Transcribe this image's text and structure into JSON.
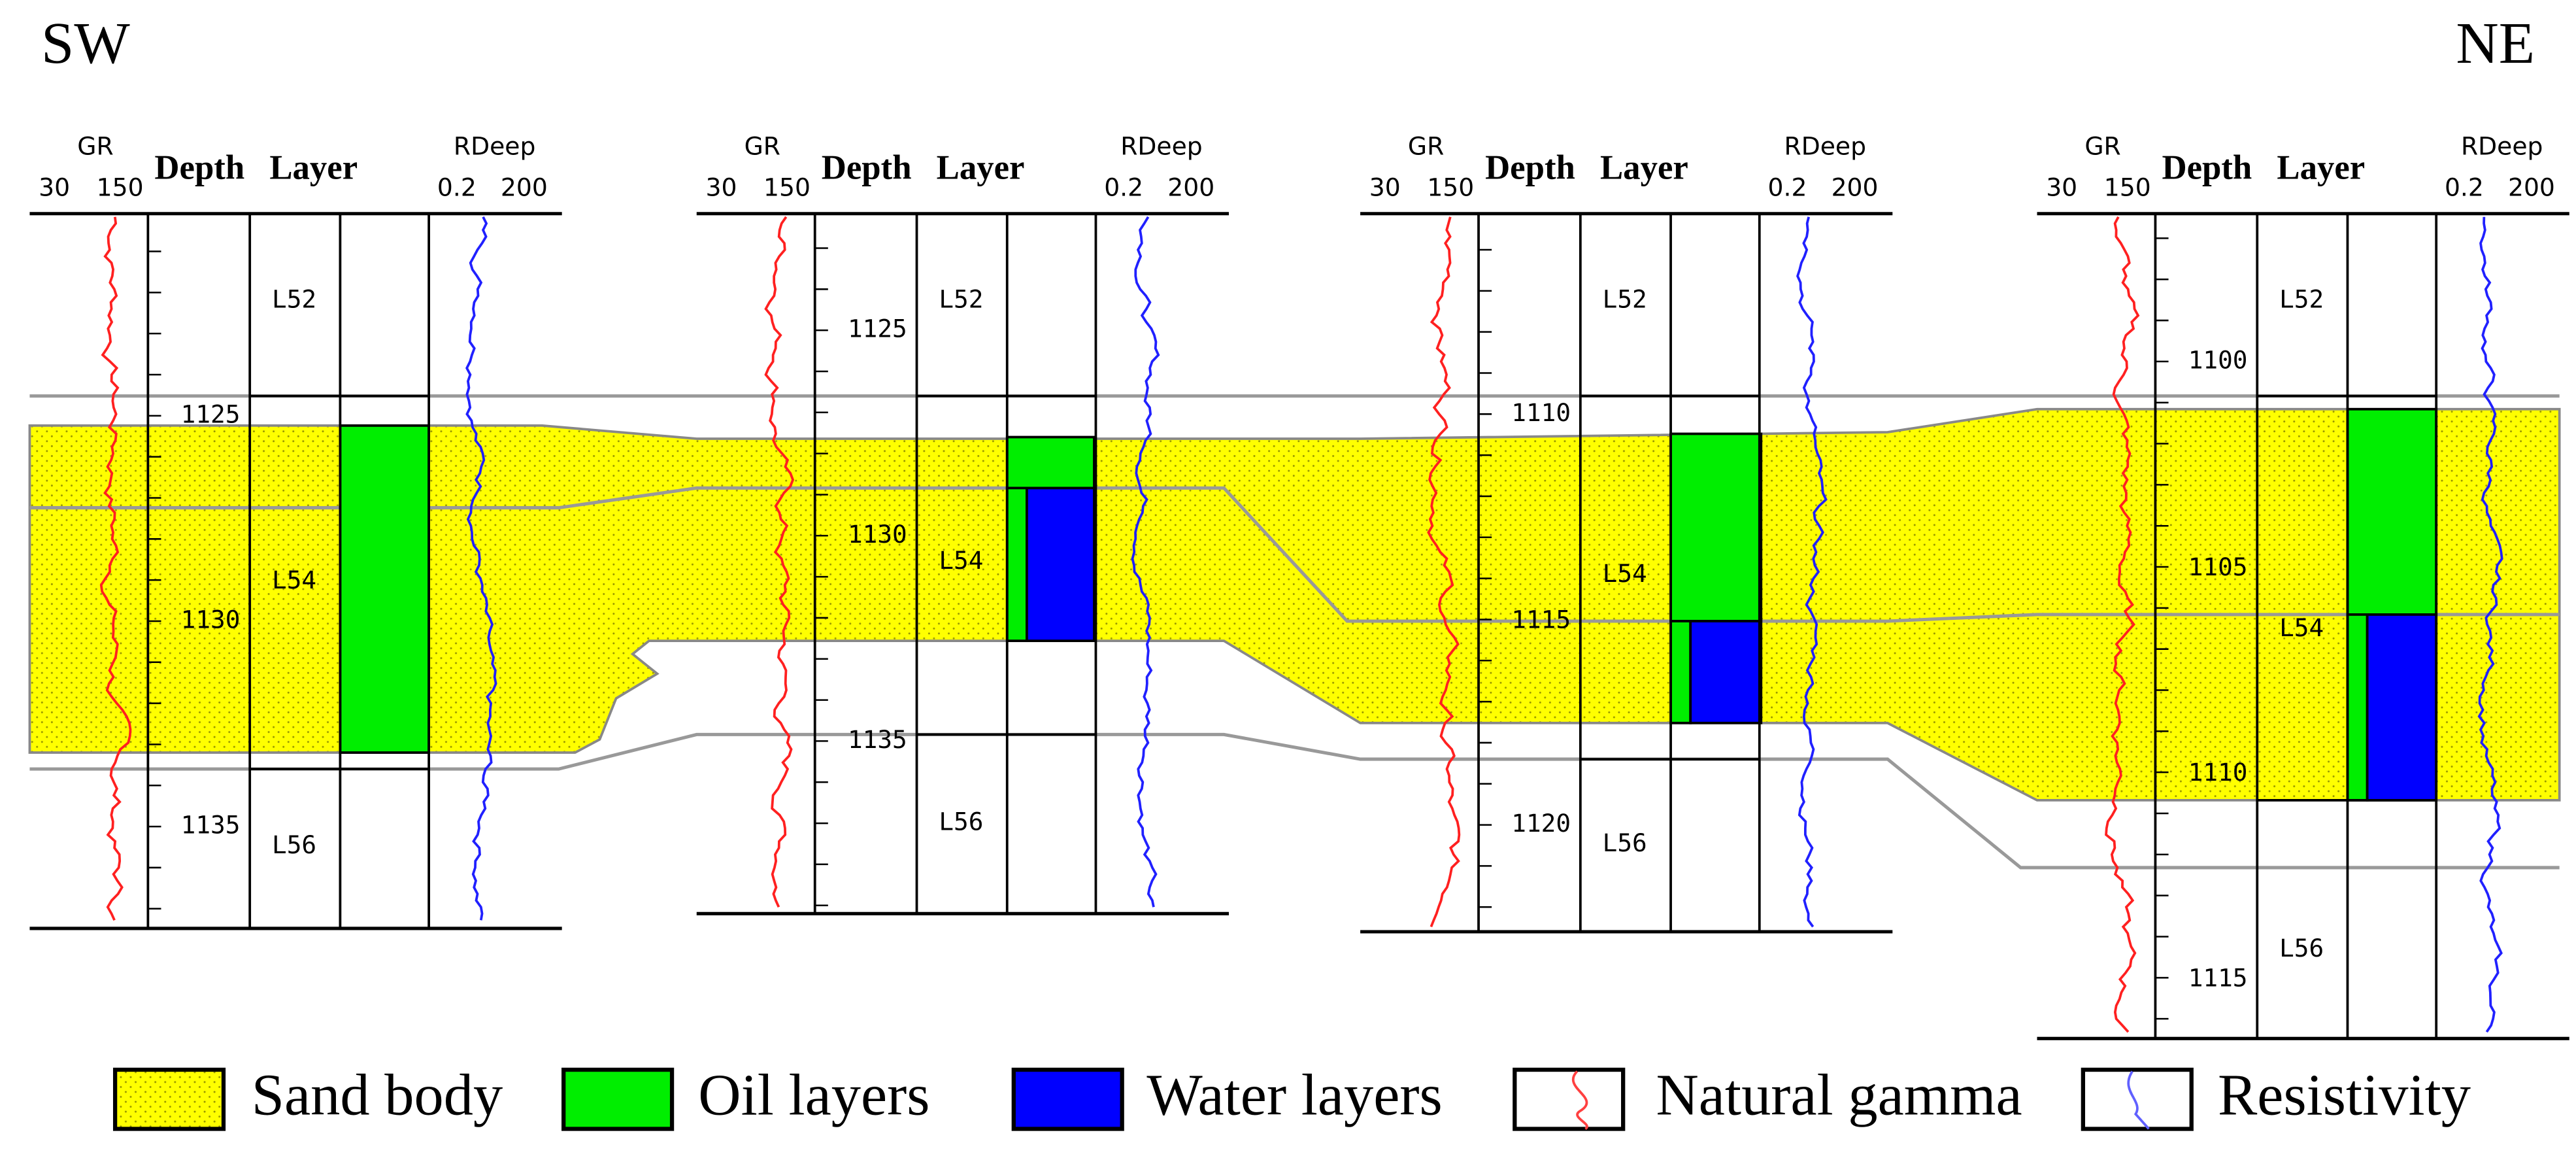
{
  "direction": {
    "left": "SW",
    "right": "NE"
  },
  "wells": [
    {
      "gr_label": "GR",
      "gr_min": "30",
      "gr_max": "150",
      "depth_label": "Depth",
      "layer_label": "Layer",
      "rdeep_label": "RDeep",
      "rdeep_min": "0.2",
      "rdeep_max": "200",
      "depths": [
        "1125",
        "1130",
        "1135"
      ],
      "layers": [
        "L52",
        "L54",
        "L56"
      ]
    },
    {
      "gr_label": "GR",
      "gr_min": "30",
      "gr_max": "150",
      "depth_label": "Depth",
      "layer_label": "Layer",
      "rdeep_label": "RDeep",
      "rdeep_min": "0.2",
      "rdeep_max": "200",
      "depths": [
        "1125",
        "1130",
        "1135"
      ],
      "layers": [
        "L52",
        "L54",
        "L56"
      ]
    },
    {
      "gr_label": "GR",
      "gr_min": "30",
      "gr_max": "150",
      "depth_label": "Depth",
      "layer_label": "Layer",
      "rdeep_label": "RDeep",
      "rdeep_min": "0.2",
      "rdeep_max": "200",
      "depths": [
        "1110",
        "1115",
        "1120"
      ],
      "layers": [
        "L52",
        "L54",
        "L56"
      ]
    },
    {
      "gr_label": "GR",
      "gr_min": "30",
      "gr_max": "150",
      "depth_label": "Depth",
      "layer_label": "Layer",
      "rdeep_label": "RDeep",
      "rdeep_min": "0.2",
      "rdeep_max": "200",
      "depths": [
        "1100",
        "1105",
        "1110",
        "1115"
      ],
      "layers": [
        "L52",
        "L54",
        "L56"
      ]
    }
  ],
  "legend": [
    "Sand body",
    "Oil layers",
    "Water layers",
    "Natural gamma",
    "Resistivity"
  ]
}
